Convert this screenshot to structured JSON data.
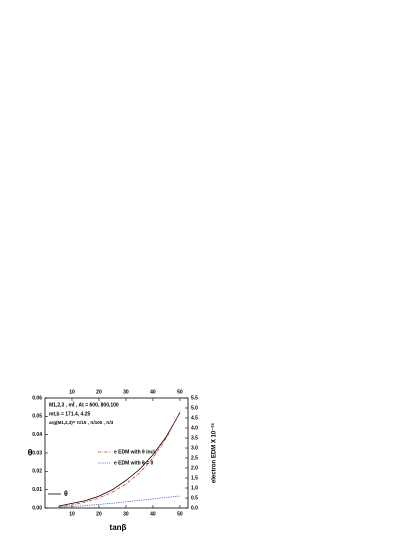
{
  "chart_data": {
    "type": "line",
    "xlabel": "tanβ",
    "ylabel": "θ",
    "y2label": "electron EDM X 10⁻²⁶",
    "annotations": [
      "M1,2,3 , mt̃ , At = 600, 800,100",
      "mt,b = 171.4, 4.25",
      "arg(M1,2,3)=  π/15 , π/100 , π/3"
    ],
    "x": [
      5,
      10,
      15,
      20,
      25,
      30,
      35,
      40,
      45,
      50
    ],
    "series": [
      {
        "name": "θ",
        "color": "#000000",
        "style": "solid",
        "axis": "y",
        "values": [
          0.001,
          0.0025,
          0.004,
          0.0065,
          0.01,
          0.015,
          0.021,
          0.029,
          0.039,
          0.052
        ]
      },
      {
        "name": "e EDM with θ incl.",
        "color": "#e0301e",
        "style": "dashdot",
        "axis": "y2",
        "values": [
          0.05,
          0.15,
          0.3,
          0.5,
          0.8,
          1.2,
          1.75,
          2.5,
          3.5,
          4.8
        ]
      },
      {
        "name": "e EDM with θ = 0",
        "color": "#2233cc",
        "style": "dotted",
        "axis": "y2",
        "values": [
          0.03,
          0.07,
          0.12,
          0.18,
          0.24,
          0.31,
          0.38,
          0.45,
          0.53,
          0.6
        ]
      }
    ],
    "xlim": [
      0,
      53
    ],
    "xticks": [
      10,
      20,
      30,
      40,
      50
    ],
    "x2ticks": [
      10,
      20,
      30,
      40,
      50
    ],
    "ylim": [
      0,
      0.06
    ],
    "yticks": [
      {
        "value": 0,
        "label": "0.00"
      },
      0.01,
      0.02,
      0.03,
      0.04,
      0.05,
      0.06
    ],
    "y2lim": [
      0,
      5.5
    ],
    "y2ticks": [
      {
        "value": 0,
        "label": "0.0"
      },
      0.5,
      {
        "value": 1,
        "label": "1.0"
      },
      1.5,
      {
        "value": 2,
        "label": "2.0"
      },
      2.5,
      {
        "value": 3,
        "label": "3.0"
      },
      3.5,
      {
        "value": 4,
        "label": "4.0"
      },
      4.5,
      {
        "value": 5,
        "label": "5.0"
      },
      5.5
    ]
  }
}
